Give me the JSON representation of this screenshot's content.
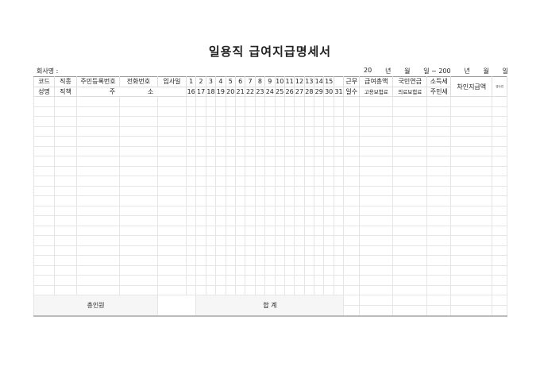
{
  "title": "일용직 급여지급명세서",
  "company_label": "회사명 :",
  "period": [
    "20",
    "년",
    "월",
    "일 ~ 200",
    "년",
    "월",
    "일"
  ],
  "header_row1": {
    "code": "코드",
    "job": "직종",
    "resident_no": "주민등록번호",
    "phone": "전화번호",
    "hire_date": "입사일",
    "days": [
      "1",
      "2",
      "3",
      "4",
      "5",
      "6",
      "7",
      "8",
      "9",
      "10",
      "11",
      "12",
      "13",
      "14",
      "15",
      ""
    ],
    "work": "근무",
    "gross": "급여총액",
    "pension": "국민연금",
    "income_tax": "소득세",
    "net_pay": "차인지급액",
    "receipt": "영수인"
  },
  "header_row2": {
    "name": "성명",
    "position": "직책",
    "address_1": "주",
    "address_2": "소",
    "days": [
      "16",
      "17",
      "18",
      "19",
      "20",
      "21",
      "22",
      "23",
      "24",
      "25",
      "26",
      "27",
      "28",
      "29",
      "30",
      "31"
    ],
    "work_days": "일수",
    "employment_ins": "고용보험료",
    "health_ins": "의료보험료",
    "resident_tax": "주민세"
  },
  "summary": {
    "headcount_label": "총인원",
    "total_label": "합    계"
  }
}
